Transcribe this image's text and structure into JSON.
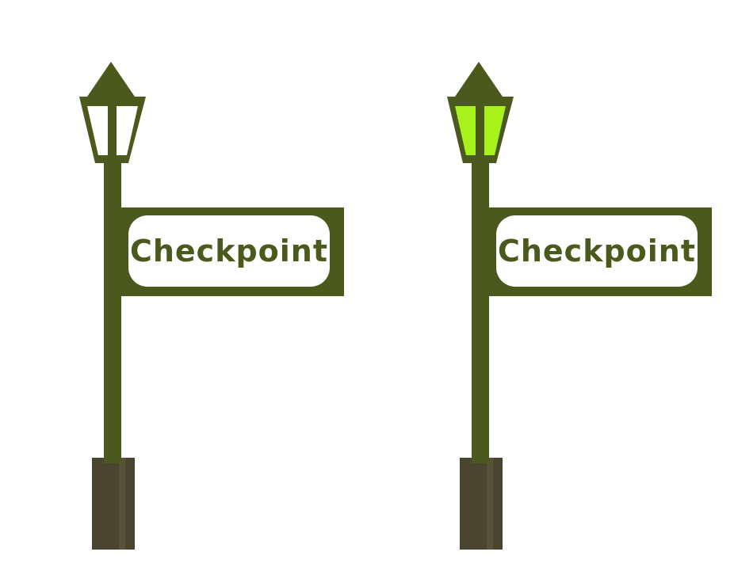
{
  "checkpoints": [
    {
      "label": "Checkpoint",
      "state": "inactive",
      "lamp_color": "#ffffff"
    },
    {
      "label": "Checkpoint",
      "state": "active",
      "lamp_color": "#a7f21a"
    }
  ],
  "colors": {
    "post": "#4b5a1c",
    "base": "#4a4530",
    "sign_panel": "#ffffff",
    "text": "#4b5a1c"
  }
}
